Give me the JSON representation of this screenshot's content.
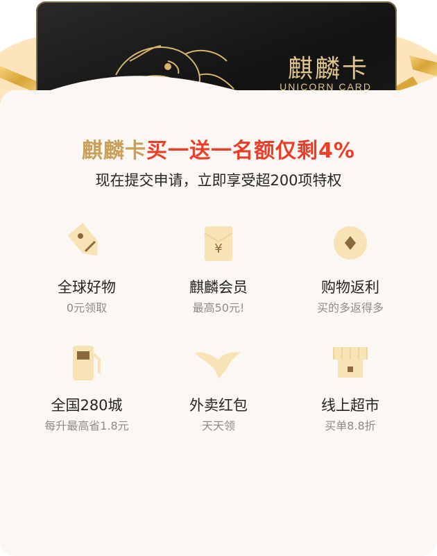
{
  "card": {
    "title": "麒麟卡",
    "subtitle": "UNICORN CARD"
  },
  "headline": {
    "part1": "麒麟卡",
    "part2": "买一送一名额仅剩",
    "part3": "4%"
  },
  "subline": "现在提交申请，立即享受超200项特权",
  "benefits": [
    {
      "title": "全球好物",
      "desc": "0元领取",
      "icon": "price-tag-icon"
    },
    {
      "title": "麒麟会员",
      "desc": "最高50元!",
      "icon": "yen-envelope-icon"
    },
    {
      "title": "购物返利",
      "desc": "买的多返得多",
      "icon": "coin-icon"
    },
    {
      "title": "全国280城",
      "desc": "每升最高省1.8元",
      "icon": "fuel-pump-icon"
    },
    {
      "title": "外卖红包",
      "desc": "天天领",
      "icon": "kangaroo-icon"
    },
    {
      "title": "线上超市",
      "desc": "买单8.8折",
      "icon": "store-icon"
    }
  ],
  "colors": {
    "gold": "#c9a05a",
    "red": "#e93f2a",
    "icon_light": "#f7e3b6",
    "icon_dark": "#8a6a3a"
  }
}
